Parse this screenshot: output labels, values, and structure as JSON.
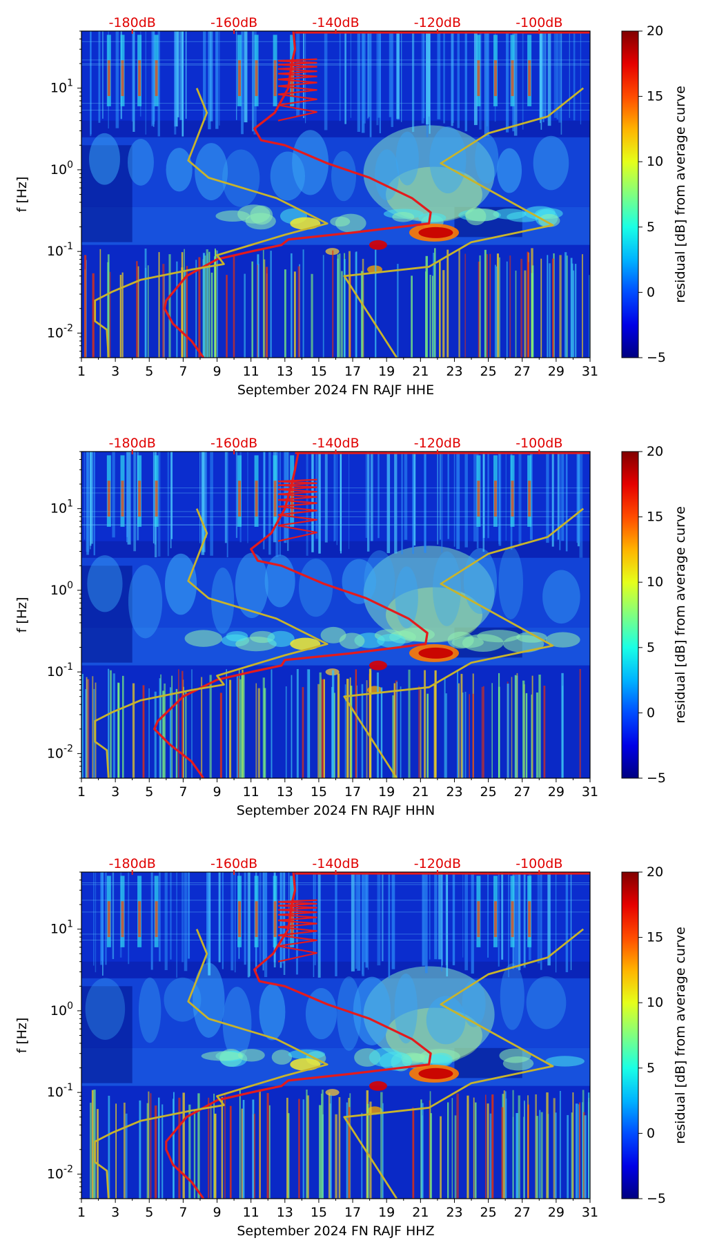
{
  "chart_data": [
    {
      "type": "heatmap",
      "title": "",
      "xlabel": "September 2024 FN RAJF  HHE",
      "ylabel": "f [Hz]",
      "colorbar_label": "residual [dB] from average curve",
      "x_ticks": [
        "1",
        "3",
        "5",
        "7",
        "9",
        "11",
        "13",
        "15",
        "17",
        "19",
        "21",
        "23",
        "25",
        "27",
        "29",
        "31"
      ],
      "xlim": [
        1,
        31
      ],
      "y_ticks": [
        "10^-2",
        "10^-1",
        "10^0",
        "10^1"
      ],
      "ylim": [
        0.005,
        50
      ],
      "colorbar_ticks": [
        "−5",
        "0",
        "5",
        "10",
        "15",
        "20"
      ],
      "clim": [
        -5,
        20
      ],
      "top_axis_ticks": [
        "-180dB",
        "-160dB",
        "-140dB",
        "-120dB",
        "-100dB"
      ],
      "top_axis_day": [
        4,
        10,
        16,
        22,
        28
      ],
      "colormap": "jet",
      "series": [
        {
          "name": "average PSD curve",
          "color": "#e41a1c",
          "points": [
            [
              13.5,
              50
            ],
            [
              13.6,
              30
            ],
            [
              13.4,
              20
            ],
            [
              13.2,
              10
            ],
            [
              12.4,
              5
            ],
            [
              11.2,
              3.2
            ],
            [
              11.6,
              2.3
            ],
            [
              13,
              2
            ],
            [
              15.5,
              1.2
            ],
            [
              18,
              0.8
            ],
            [
              20.5,
              0.45
            ],
            [
              21.6,
              0.3
            ],
            [
              21.5,
              0.22
            ],
            [
              17,
              0.17
            ],
            [
              13.2,
              0.14
            ],
            [
              12.8,
              0.12
            ],
            [
              11,
              0.1
            ],
            [
              9,
              0.08
            ],
            [
              7.2,
              0.05
            ],
            [
              6,
              0.025
            ],
            [
              5.9,
              0.02
            ],
            [
              6.4,
              0.013
            ],
            [
              7.5,
              0.008
            ],
            [
              8.2,
              0.005
            ]
          ]
        },
        {
          "name": "NLNM/NHNM model",
          "color": "#c8b42c",
          "points": [
            [
              7.8,
              10
            ],
            [
              8.4,
              5
            ],
            [
              7.3,
              1.3
            ],
            [
              8.5,
              0.8
            ],
            [
              12.5,
              0.45
            ],
            [
              15.5,
              0.22
            ],
            [
              13,
              0.16
            ],
            [
              9,
              0.09
            ],
            [
              9.4,
              0.07
            ],
            [
              7.5,
              0.06
            ],
            [
              4.5,
              0.045
            ],
            [
              2.8,
              0.032
            ],
            [
              1.8,
              0.025
            ],
            [
              1.8,
              0.014
            ],
            [
              2.5,
              0.011
            ],
            [
              2.6,
              0.005
            ]
          ],
          "points_2": [
            [
              19.6,
              0.005
            ],
            [
              16.5,
              0.05
            ],
            [
              21.5,
              0.065
            ],
            [
              24,
              0.13
            ],
            [
              28.8,
              0.21
            ],
            [
              22.2,
              1.2
            ],
            [
              25,
              2.8
            ],
            [
              28.5,
              4.5
            ],
            [
              30.6,
              10
            ]
          ]
        }
      ]
    },
    {
      "type": "heatmap",
      "title": "",
      "xlabel": "September 2024 FN RAJF  HHN",
      "ylabel": "f [Hz]",
      "colorbar_label": "residual [dB] from average curve",
      "x_ticks": [
        "1",
        "3",
        "5",
        "7",
        "9",
        "11",
        "13",
        "15",
        "17",
        "19",
        "21",
        "23",
        "25",
        "27",
        "29",
        "31"
      ],
      "xlim": [
        1,
        31
      ],
      "y_ticks": [
        "10^-2",
        "10^-1",
        "10^0",
        "10^1"
      ],
      "ylim": [
        0.005,
        50
      ],
      "colorbar_ticks": [
        "−5",
        "0",
        "5",
        "10",
        "15",
        "20"
      ],
      "clim": [
        -5,
        20
      ],
      "top_axis_ticks": [
        "-180dB",
        "-160dB",
        "-140dB",
        "-120dB",
        "-100dB"
      ],
      "top_axis_day": [
        4,
        10,
        16,
        22,
        28
      ],
      "colormap": "jet",
      "series": [
        {
          "name": "average PSD curve",
          "color": "#e41a1c",
          "points": [
            [
              13.8,
              50
            ],
            [
              13.6,
              30
            ],
            [
              13.4,
              20
            ],
            [
              13.0,
              10
            ],
            [
              12.2,
              5
            ],
            [
              11.0,
              3.2
            ],
            [
              11.4,
              2.3
            ],
            [
              12.8,
              2
            ],
            [
              15.3,
              1.2
            ],
            [
              17.8,
              0.8
            ],
            [
              20.3,
              0.45
            ],
            [
              21.4,
              0.3
            ],
            [
              21.3,
              0.22
            ],
            [
              17,
              0.17
            ],
            [
              13.0,
              0.14
            ],
            [
              12.8,
              0.12
            ],
            [
              11,
              0.1
            ],
            [
              9,
              0.08
            ],
            [
              7.0,
              0.05
            ],
            [
              5.5,
              0.025
            ],
            [
              5.3,
              0.02
            ],
            [
              6.2,
              0.013
            ],
            [
              7.5,
              0.008
            ],
            [
              8.2,
              0.005
            ]
          ]
        },
        {
          "name": "NLNM/NHNM model",
          "color": "#c8b42c",
          "points": [
            [
              7.8,
              10
            ],
            [
              8.4,
              5
            ],
            [
              7.3,
              1.3
            ],
            [
              8.5,
              0.8
            ],
            [
              12.5,
              0.45
            ],
            [
              15.5,
              0.22
            ],
            [
              13,
              0.16
            ],
            [
              9,
              0.09
            ],
            [
              9.4,
              0.07
            ],
            [
              7.5,
              0.06
            ],
            [
              4.5,
              0.045
            ],
            [
              2.8,
              0.032
            ],
            [
              1.8,
              0.025
            ],
            [
              1.8,
              0.014
            ],
            [
              2.5,
              0.011
            ],
            [
              2.6,
              0.005
            ]
          ],
          "points_2": [
            [
              19.6,
              0.005
            ],
            [
              16.5,
              0.05
            ],
            [
              21.5,
              0.065
            ],
            [
              24,
              0.13
            ],
            [
              28.8,
              0.21
            ],
            [
              22.2,
              1.2
            ],
            [
              25,
              2.8
            ],
            [
              28.5,
              4.5
            ],
            [
              30.6,
              10
            ]
          ]
        }
      ]
    },
    {
      "type": "heatmap",
      "title": "",
      "xlabel": "September 2024 FN RAJF  HHZ",
      "ylabel": "f [Hz]",
      "colorbar_label": "residual [dB] from average curve",
      "x_ticks": [
        "1",
        "3",
        "5",
        "7",
        "9",
        "11",
        "13",
        "15",
        "17",
        "19",
        "21",
        "23",
        "25",
        "27",
        "29",
        "31"
      ],
      "xlim": [
        1,
        31
      ],
      "y_ticks": [
        "10^-2",
        "10^-1",
        "10^0",
        "10^1"
      ],
      "ylim": [
        0.005,
        50
      ],
      "colorbar_ticks": [
        "−5",
        "0",
        "5",
        "10",
        "15",
        "20"
      ],
      "clim": [
        -5,
        20
      ],
      "top_axis_ticks": [
        "-180dB",
        "-160dB",
        "-140dB",
        "-120dB",
        "-100dB"
      ],
      "top_axis_day": [
        4,
        10,
        16,
        22,
        28
      ],
      "colormap": "jet",
      "series": [
        {
          "name": "average PSD curve",
          "color": "#e41a1c",
          "points": [
            [
              13.5,
              50
            ],
            [
              13.6,
              30
            ],
            [
              13.4,
              20
            ],
            [
              13.2,
              10
            ],
            [
              12.3,
              5
            ],
            [
              11.2,
              3.2
            ],
            [
              11.5,
              2.3
            ],
            [
              13,
              2
            ],
            [
              15.5,
              1.2
            ],
            [
              18,
              0.8
            ],
            [
              20.5,
              0.45
            ],
            [
              21.6,
              0.3
            ],
            [
              21.5,
              0.22
            ],
            [
              17,
              0.17
            ],
            [
              13.2,
              0.14
            ],
            [
              12.8,
              0.12
            ],
            [
              11,
              0.1
            ],
            [
              9,
              0.08
            ],
            [
              7.2,
              0.05
            ],
            [
              6,
              0.025
            ],
            [
              6.0,
              0.02
            ],
            [
              6.4,
              0.013
            ],
            [
              7.5,
              0.008
            ],
            [
              8.2,
              0.005
            ]
          ]
        },
        {
          "name": "NLNM/NHNM model",
          "color": "#c8b42c",
          "points": [
            [
              7.8,
              10
            ],
            [
              8.4,
              5
            ],
            [
              7.3,
              1.3
            ],
            [
              8.5,
              0.8
            ],
            [
              12.5,
              0.45
            ],
            [
              15.5,
              0.22
            ],
            [
              13,
              0.16
            ],
            [
              9,
              0.09
            ],
            [
              9.4,
              0.07
            ],
            [
              7.5,
              0.06
            ],
            [
              4.5,
              0.045
            ],
            [
              2.8,
              0.032
            ],
            [
              1.8,
              0.025
            ],
            [
              1.8,
              0.014
            ],
            [
              2.5,
              0.011
            ],
            [
              2.6,
              0.005
            ]
          ],
          "points_2": [
            [
              19.6,
              0.005
            ],
            [
              16.5,
              0.05
            ],
            [
              21.5,
              0.065
            ],
            [
              24,
              0.13
            ],
            [
              28.8,
              0.21
            ],
            [
              22.2,
              1.2
            ],
            [
              25,
              2.8
            ],
            [
              28.5,
              4.5
            ],
            [
              30.6,
              10
            ]
          ]
        }
      ]
    }
  ]
}
